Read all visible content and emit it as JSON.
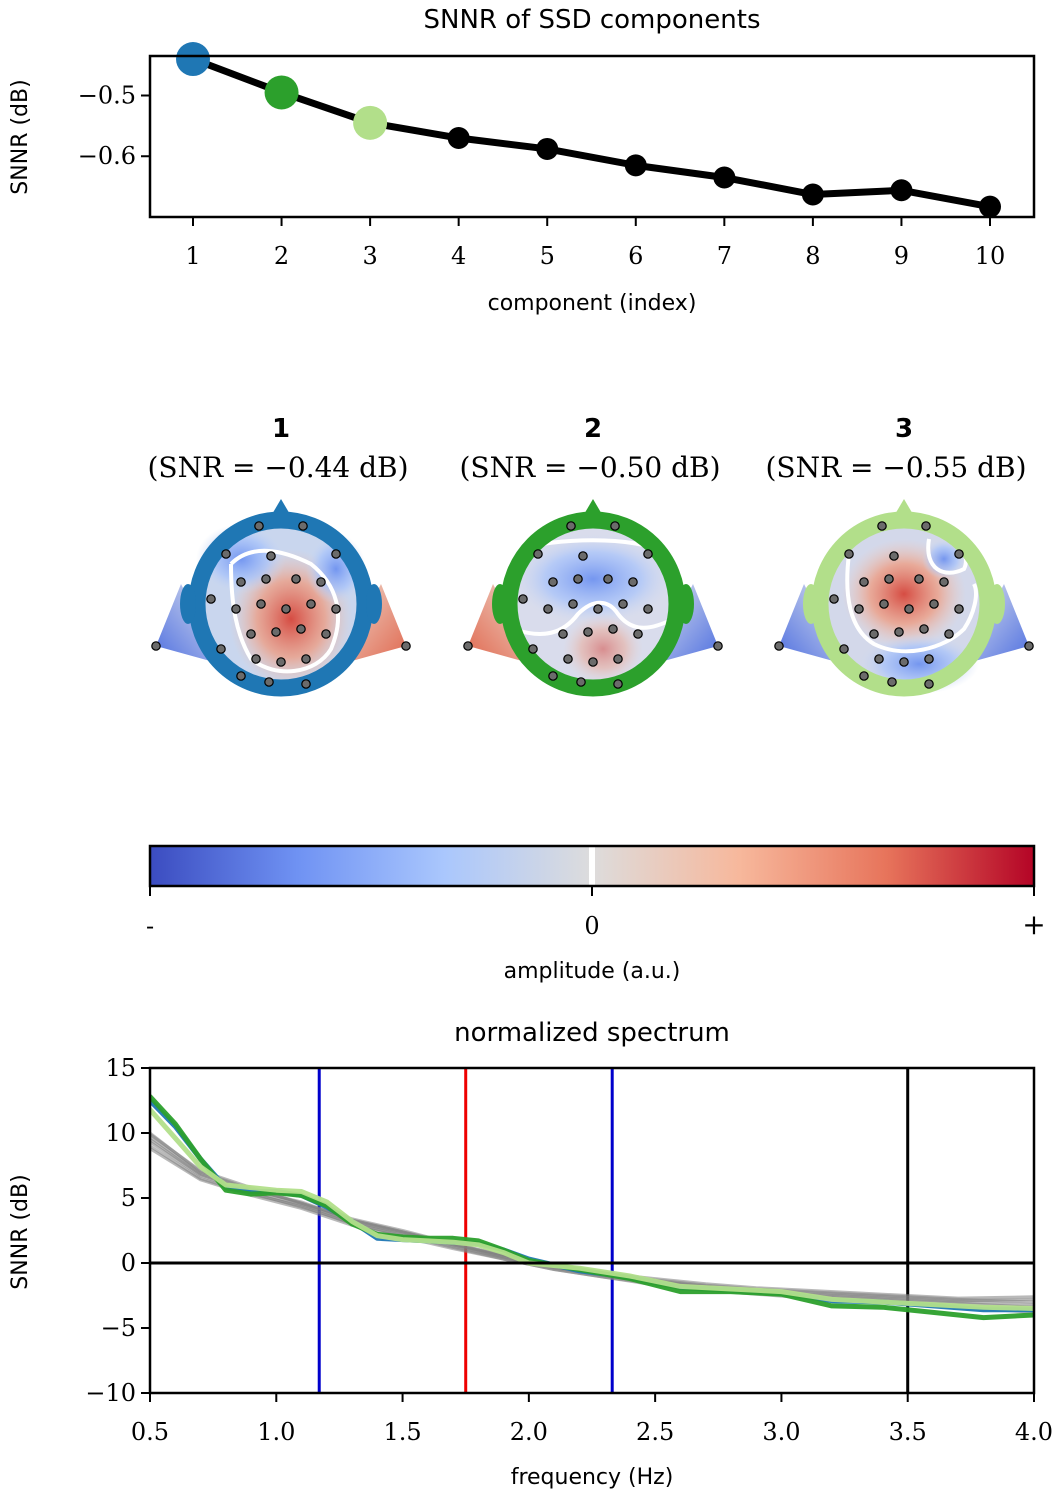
{
  "chart_data": [
    {
      "type": "line",
      "title": "SNNR of SSD components",
      "xlabel": "component (index)",
      "ylabel": "SNNR (dB)",
      "x": [
        1,
        2,
        3,
        4,
        5,
        6,
        7,
        8,
        9,
        10
      ],
      "xticks": [
        "1",
        "2",
        "3",
        "4",
        "5",
        "6",
        "7",
        "8",
        "9",
        "10"
      ],
      "ylim": [
        -0.7,
        -0.435
      ],
      "yticks": [
        {
          "v": -0.5,
          "label": "−0.5"
        },
        {
          "v": -0.6,
          "label": "−0.6"
        }
      ],
      "values": [
        -0.44,
        -0.495,
        -0.545,
        -0.57,
        -0.588,
        -0.615,
        -0.635,
        -0.663,
        -0.656,
        -0.683
      ],
      "point_colors": [
        "#1f77b4",
        "#2ca02c",
        "#b2df8a",
        "#000000",
        "#000000",
        "#000000",
        "#000000",
        "#000000",
        "#000000",
        "#000000"
      ],
      "line_color": "#000000",
      "grid": false
    },
    {
      "type": "heatmap",
      "description_kind": "topomaps",
      "topomaps": [
        {
          "index": "1",
          "snr_label": "(SNR = −0.44 dB)",
          "color": "#1f77b4"
        },
        {
          "index": "2",
          "snr_label": "(SNR = −0.50 dB)",
          "color": "#2ca02c"
        },
        {
          "index": "3",
          "snr_label": "(SNR = −0.55 dB)",
          "color": "#b2df8a"
        }
      ],
      "colorbar": {
        "label": "amplitude (a.u.)",
        "ticks": [
          "-",
          "0",
          "+"
        ],
        "colormap": "coolwarm",
        "colors": [
          "#3b4cc0",
          "#6f92f3",
          "#aac7fd",
          "#dddcdc",
          "#f7b89c",
          "#e7745b",
          "#b40426"
        ]
      }
    },
    {
      "type": "line",
      "title": "normalized spectrum",
      "xlabel": "frequency (Hz)",
      "ylabel": "SNNR (dB)",
      "xlim": [
        0.5,
        4.0
      ],
      "ylim": [
        -10,
        15
      ],
      "xticks": [
        {
          "v": 0.5,
          "label": "0.5"
        },
        {
          "v": 1.0,
          "label": "1.0"
        },
        {
          "v": 1.5,
          "label": "1.5"
        },
        {
          "v": 2.0,
          "label": "2.0"
        },
        {
          "v": 2.5,
          "label": "2.5"
        },
        {
          "v": 3.0,
          "label": "3.0"
        },
        {
          "v": 3.5,
          "label": "3.5"
        },
        {
          "v": 4.0,
          "label": "4.0"
        }
      ],
      "yticks": [
        {
          "v": 15,
          "label": "15"
        },
        {
          "v": 10,
          "label": "10"
        },
        {
          "v": 5,
          "label": "5"
        },
        {
          "v": 0,
          "label": "0"
        },
        {
          "v": -5,
          "label": "−5"
        },
        {
          "v": -10,
          "label": "−10"
        }
      ],
      "series": [
        {
          "color": "#1f77b4",
          "x": [
            0.5,
            0.6,
            0.7,
            0.8,
            0.9,
            1.0,
            1.1,
            1.2,
            1.3,
            1.4,
            1.5,
            1.6,
            1.7,
            1.8,
            1.9,
            2.0,
            2.2,
            2.4,
            2.6,
            2.8,
            3.0,
            3.2,
            3.4,
            3.6,
            3.8,
            4.0
          ],
          "values": [
            12.5,
            10.5,
            8.0,
            5.8,
            5.5,
            5.5,
            5.2,
            4.3,
            3.2,
            1.9,
            1.8,
            1.7,
            1.6,
            1.5,
            1.0,
            0.3,
            -0.6,
            -1.1,
            -1.9,
            -2.1,
            -2.3,
            -2.9,
            -3.0,
            -3.3,
            -3.6,
            -3.6
          ]
        },
        {
          "color": "#2ca02c",
          "x": [
            0.5,
            0.6,
            0.7,
            0.8,
            0.9,
            1.0,
            1.1,
            1.2,
            1.3,
            1.4,
            1.5,
            1.6,
            1.7,
            1.8,
            1.9,
            2.0,
            2.2,
            2.4,
            2.6,
            2.8,
            3.0,
            3.2,
            3.4,
            3.6,
            3.8,
            4.0
          ],
          "values": [
            12.8,
            10.7,
            8.0,
            5.6,
            5.3,
            5.4,
            5.2,
            4.4,
            3.0,
            2.2,
            2.0,
            1.9,
            1.9,
            1.7,
            1.0,
            0.2,
            -0.5,
            -1.2,
            -2.2,
            -2.2,
            -2.4,
            -3.3,
            -3.4,
            -3.8,
            -4.2,
            -4.0
          ]
        },
        {
          "color": "#b2df8a",
          "x": [
            0.5,
            0.6,
            0.7,
            0.8,
            0.9,
            1.0,
            1.1,
            1.2,
            1.3,
            1.4,
            1.5,
            1.6,
            1.7,
            1.8,
            1.9,
            2.0,
            2.2,
            2.4,
            2.6,
            2.8,
            3.0,
            3.2,
            3.4,
            3.6,
            3.8,
            4.0
          ],
          "values": [
            11.8,
            9.6,
            7.4,
            6.0,
            5.8,
            5.6,
            5.5,
            4.7,
            3.2,
            2.1,
            1.8,
            1.7,
            1.6,
            1.4,
            0.8,
            0.0,
            -0.4,
            -1.0,
            -1.8,
            -2.0,
            -2.2,
            -2.8,
            -3.0,
            -3.2,
            -3.4,
            -3.5
          ]
        },
        {
          "color": "#808080",
          "x": [
            0.5,
            0.7,
            0.9,
            1.1,
            1.3,
            1.5,
            1.7,
            1.9,
            2.1,
            2.3,
            2.5,
            2.7,
            2.9,
            3.1,
            3.3,
            3.5,
            3.7,
            4.0
          ],
          "values": [
            9.5,
            6.8,
            5.5,
            4.5,
            3.2,
            2.3,
            1.4,
            0.5,
            -0.3,
            -0.9,
            -1.4,
            -1.8,
            -2.1,
            -2.4,
            -2.6,
            -2.8,
            -3.0,
            -3.2
          ]
        },
        {
          "color": "#808080",
          "x": [
            0.5,
            0.7,
            0.9,
            1.1,
            1.3,
            1.5,
            1.7,
            1.9,
            2.1,
            2.3,
            2.5,
            2.7,
            2.9,
            3.1,
            3.3,
            3.5,
            3.7,
            4.0
          ],
          "values": [
            9.0,
            6.5,
            5.3,
            4.4,
            3.0,
            2.2,
            1.3,
            0.4,
            -0.4,
            -1.0,
            -1.5,
            -1.9,
            -2.2,
            -2.5,
            -2.7,
            -2.9,
            -3.1,
            -3.4
          ]
        },
        {
          "color": "#808080",
          "x": [
            0.5,
            0.7,
            0.9,
            1.1,
            1.3,
            1.5,
            1.7,
            1.9,
            2.1,
            2.3,
            2.5,
            2.7,
            2.9,
            3.1,
            3.3,
            3.5,
            3.7,
            4.0
          ],
          "values": [
            10.0,
            7.0,
            5.7,
            4.6,
            3.4,
            2.5,
            1.5,
            0.6,
            -0.2,
            -0.8,
            -1.3,
            -1.7,
            -2.0,
            -2.2,
            -2.4,
            -2.6,
            -2.8,
            -3.0
          ]
        },
        {
          "color": "#808080",
          "x": [
            0.5,
            0.7,
            0.9,
            1.1,
            1.3,
            1.5,
            1.7,
            1.9,
            2.1,
            2.3,
            2.5,
            2.7,
            2.9,
            3.1,
            3.3,
            3.5,
            3.7,
            4.0
          ],
          "values": [
            9.3,
            6.7,
            5.4,
            4.3,
            3.1,
            2.1,
            1.2,
            0.3,
            -0.5,
            -1.1,
            -1.6,
            -2.0,
            -2.3,
            -2.6,
            -2.8,
            -3.0,
            -3.3,
            -3.6
          ]
        },
        {
          "color": "#808080",
          "x": [
            0.5,
            0.7,
            0.9,
            1.1,
            1.3,
            1.5,
            1.7,
            1.9,
            2.1,
            2.3,
            2.5,
            2.7,
            2.9,
            3.1,
            3.3,
            3.5,
            3.7,
            4.0
          ],
          "values": [
            9.7,
            6.9,
            5.6,
            4.7,
            3.3,
            2.4,
            1.5,
            0.5,
            -0.3,
            -0.9,
            -1.4,
            -1.8,
            -2.1,
            -2.3,
            -2.5,
            -2.7,
            -2.9,
            -2.8
          ]
        },
        {
          "color": "#808080",
          "x": [
            0.5,
            0.7,
            0.9,
            1.1,
            1.3,
            1.5,
            1.7,
            1.9,
            2.1,
            2.3,
            2.5,
            2.7,
            2.9,
            3.1,
            3.3,
            3.5,
            3.7,
            4.0
          ],
          "values": [
            8.8,
            6.4,
            5.2,
            4.2,
            2.9,
            2.0,
            1.1,
            0.3,
            -0.5,
            -1.1,
            -1.7,
            -2.1,
            -2.4,
            -2.7,
            -2.9,
            -3.1,
            -3.4,
            -3.8
          ]
        },
        {
          "color": "#808080",
          "x": [
            0.5,
            0.7,
            0.9,
            1.1,
            1.3,
            1.5,
            1.7,
            1.9,
            2.1,
            2.3,
            2.5,
            2.7,
            2.9,
            3.1,
            3.3,
            3.5,
            3.7,
            4.0
          ],
          "values": [
            9.9,
            7.1,
            5.8,
            4.6,
            3.3,
            2.4,
            1.4,
            0.6,
            -0.2,
            -0.8,
            -1.2,
            -1.6,
            -1.9,
            -2.1,
            -2.3,
            -2.5,
            -2.7,
            -2.6
          ]
        }
      ],
      "vlines": [
        {
          "x": 1.17,
          "color": "#0000cc"
        },
        {
          "x": 1.75,
          "color": "#ee0000"
        },
        {
          "x": 2.33,
          "color": "#0000cc"
        },
        {
          "x": 3.5,
          "color": "#000000"
        }
      ],
      "hline": {
        "y": 0,
        "color": "#000000"
      },
      "grid": false
    }
  ]
}
